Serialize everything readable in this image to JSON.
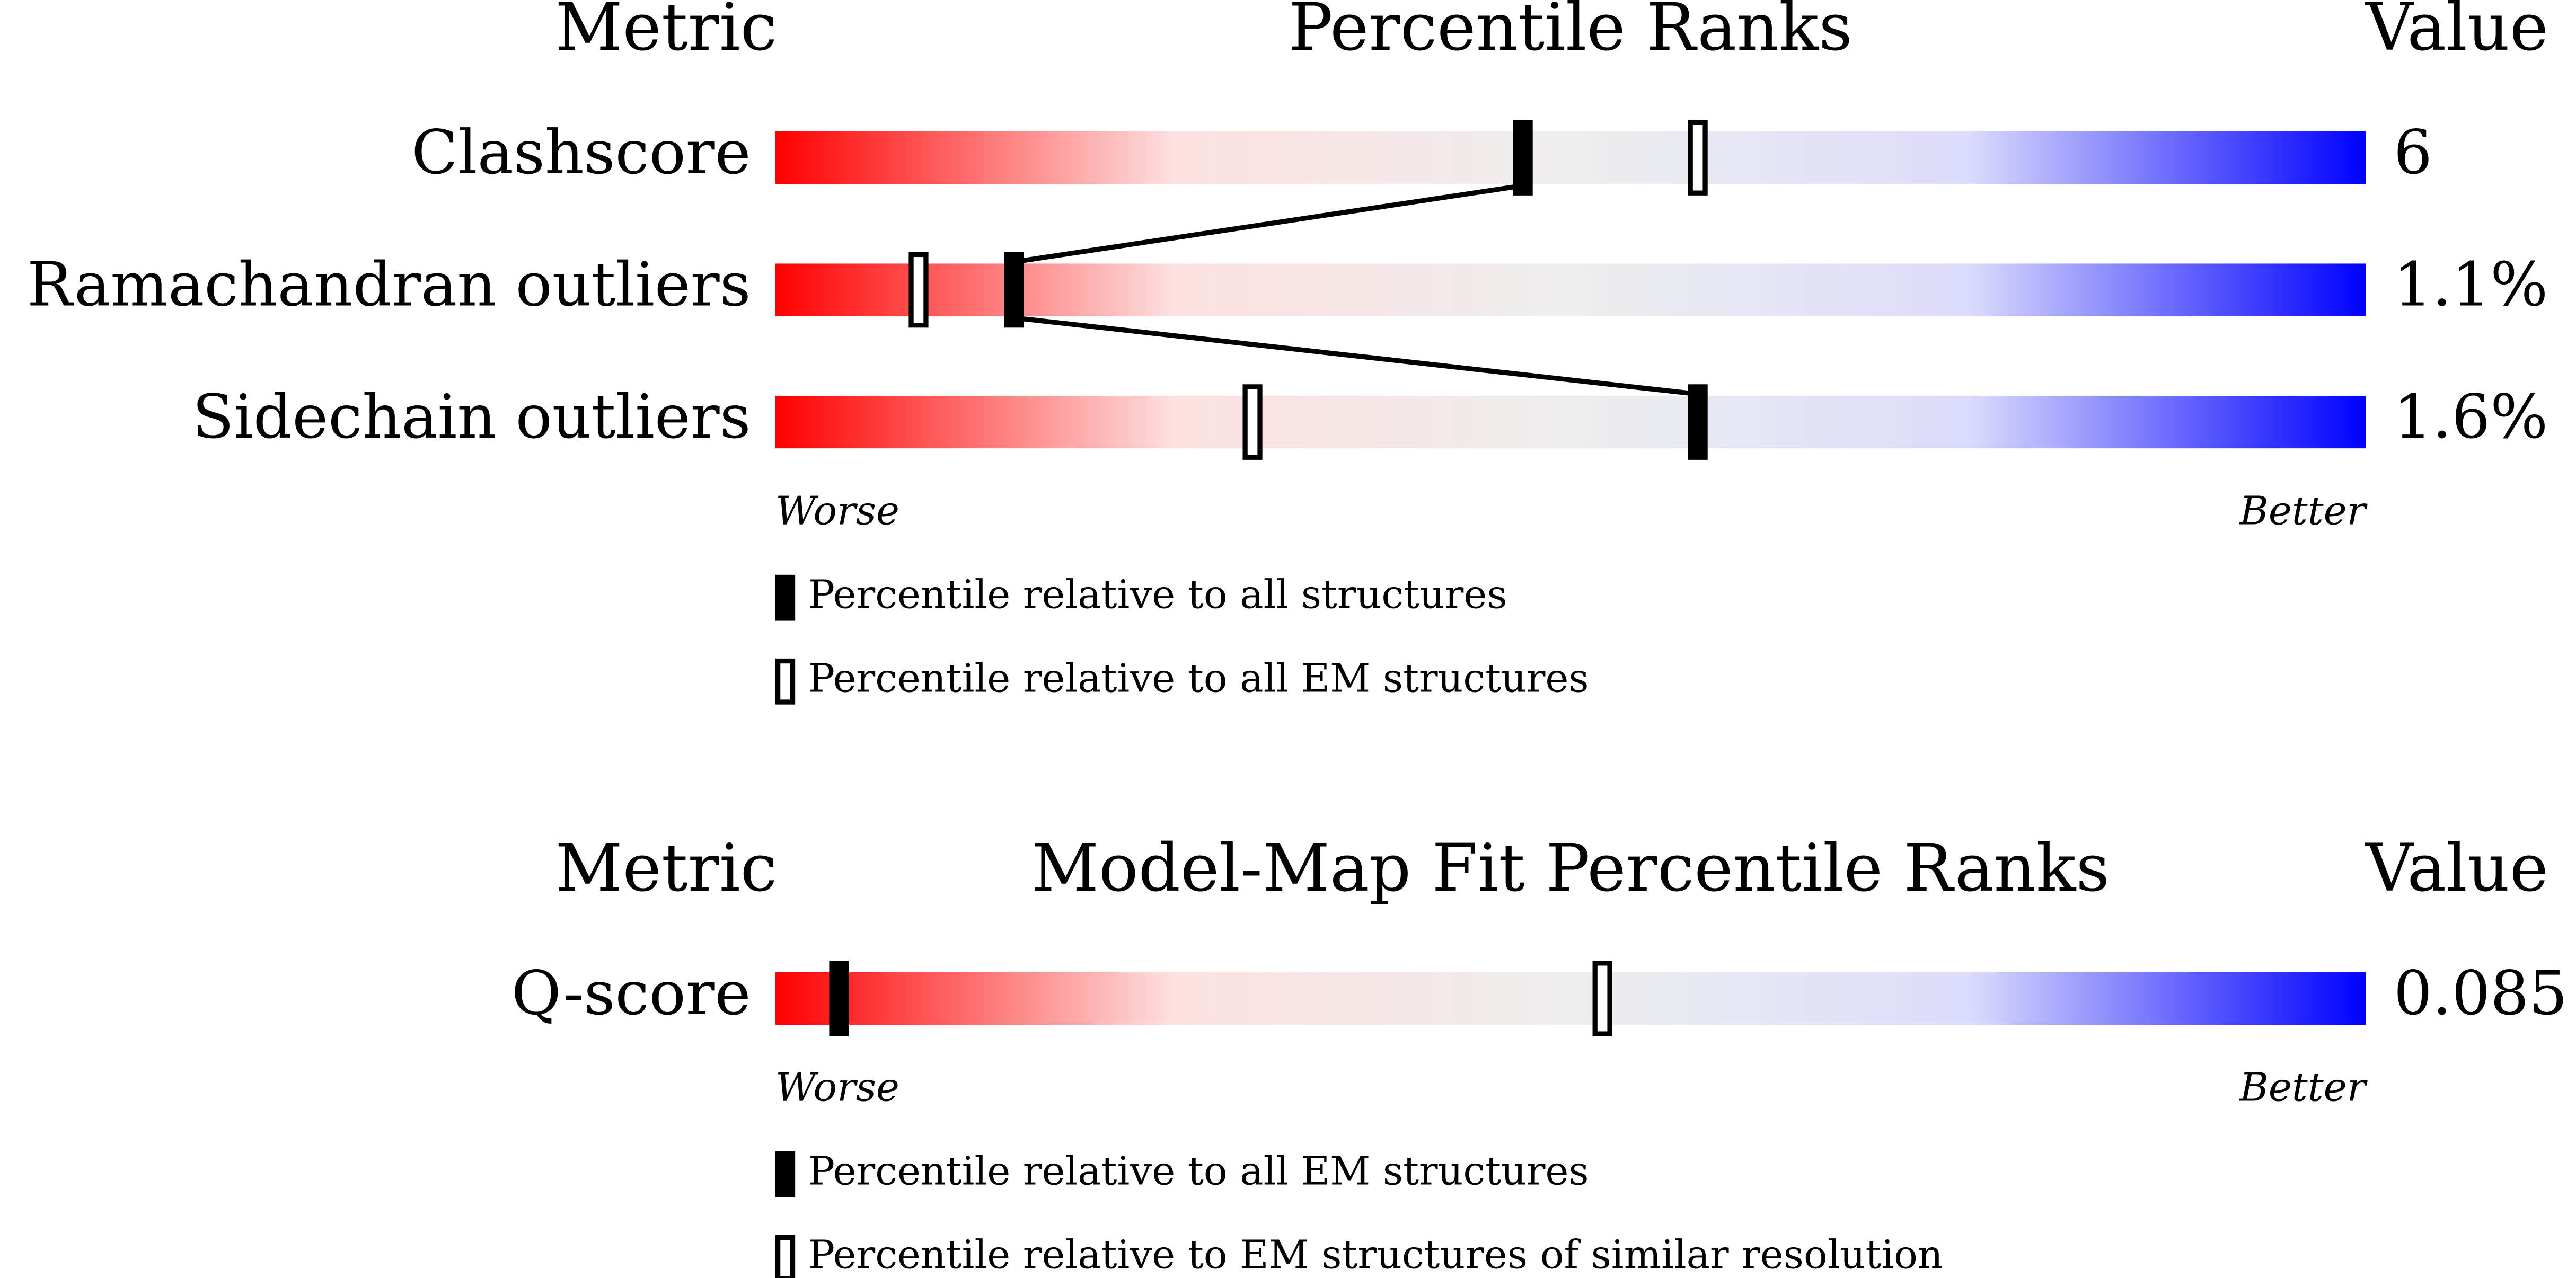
{
  "chart_data": [
    {
      "type": "percentile",
      "metric_header": "Metric",
      "title": "Percentile Ranks",
      "value_header": "Value",
      "categories": [
        "Clashscore",
        "Ramachandran outliers",
        "Sidechain outliers"
      ],
      "values": [
        6,
        1.1,
        1.6
      ],
      "value_labels": [
        "6",
        "1.1%",
        "1.6%"
      ],
      "xlim": [
        0,
        100
      ],
      "worse_label": "Worse",
      "better_label": "Better",
      "colors": [
        "#ff0000",
        "#fde0e0",
        "#eeeeee",
        "#dcdcfc",
        "#0000ff"
      ],
      "series": [
        {
          "name": "Percentile relative to all structures",
          "marker": "filled",
          "connect": true,
          "values": [
            47,
            15,
            58
          ]
        },
        {
          "name": "Percentile relative to all EM structures",
          "marker": "open",
          "connect": false,
          "values": [
            58,
            9,
            30
          ]
        }
      ]
    },
    {
      "type": "percentile",
      "metric_header": "Metric",
      "title": "Model-Map Fit Percentile Ranks",
      "value_header": "Value",
      "categories": [
        "Q-score"
      ],
      "values": [
        0.085
      ],
      "value_labels": [
        "0.085"
      ],
      "xlim": [
        0,
        100
      ],
      "worse_label": "Worse",
      "better_label": "Better",
      "colors": [
        "#ff0000",
        "#fde0e0",
        "#eeeeee",
        "#dcdcfc",
        "#0000ff"
      ],
      "series": [
        {
          "name": "Percentile relative to all EM structures",
          "marker": "filled",
          "connect": true,
          "values": [
            4
          ]
        },
        {
          "name": "Percentile relative to EM structures of similar resolution",
          "marker": "open",
          "connect": false,
          "values": [
            52
          ]
        }
      ]
    }
  ]
}
